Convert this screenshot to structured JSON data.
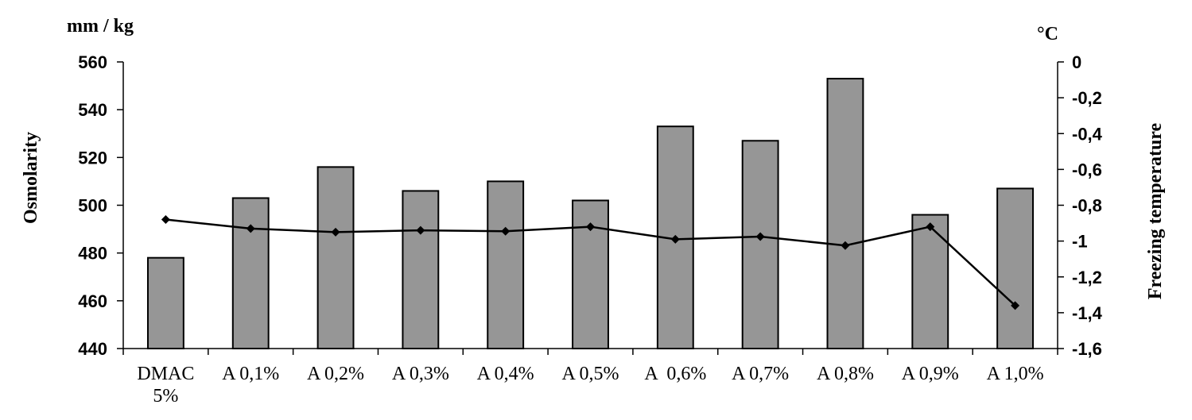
{
  "chart_data": {
    "type": "bar",
    "categories": [
      "DMAC 5%",
      "A 0,1%",
      "A 0,2%",
      "A 0,3%",
      "A 0,4%",
      "A 0,5%",
      "A  0,6%",
      "A 0,7%",
      "A 0,8%",
      "A 0,9%",
      "A 1,0%"
    ],
    "series": [
      {
        "name": "Osmolarity",
        "type": "bar",
        "axis": "left",
        "values": [
          478,
          503,
          516,
          506,
          510,
          502,
          533,
          527,
          553,
          496,
          507
        ],
        "color": "#969696"
      },
      {
        "name": "Freezing temperature",
        "type": "line",
        "axis": "right",
        "values": [
          -0.88,
          -0.93,
          -0.95,
          -0.94,
          -0.945,
          -0.92,
          -0.99,
          -0.975,
          -1.025,
          -0.92,
          -1.36
        ],
        "color": "#000000"
      }
    ],
    "left_axis": {
      "label": "Osmolarity",
      "unit": "mm / kg",
      "ylim": [
        440,
        560
      ],
      "ticks": [
        440,
        460,
        480,
        500,
        520,
        540,
        560
      ],
      "tick_labels": [
        "440",
        "460",
        "480",
        "500",
        "520",
        "540",
        "560"
      ]
    },
    "right_axis": {
      "label": "Freezing temperature",
      "unit": "°C",
      "ylim": [
        -1.6,
        0
      ],
      "ticks": [
        -1.6,
        -1.4,
        -1.2,
        -1,
        -0.8,
        -0.6,
        -0.4,
        -0.2,
        0
      ],
      "tick_labels": [
        "-1,6",
        "-1,4",
        "-1,2",
        "-1",
        "-0,8",
        "-0,6",
        "-0,4",
        "-0,2",
        "0"
      ]
    },
    "grid": false,
    "legend": "none"
  }
}
